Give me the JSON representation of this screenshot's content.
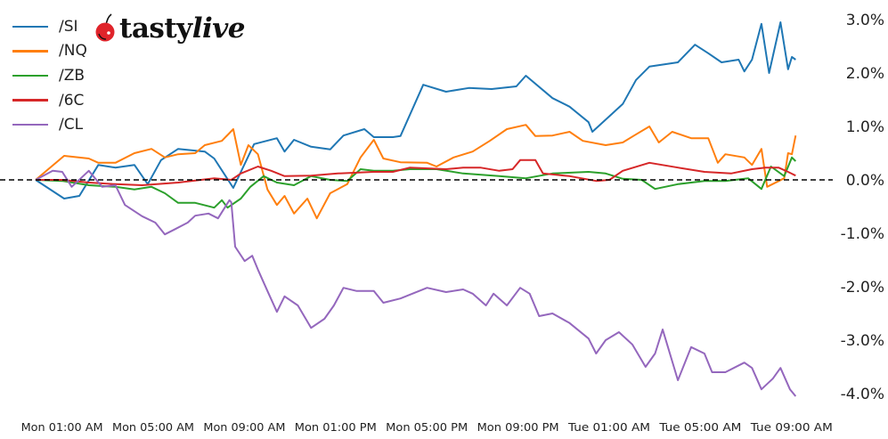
{
  "logo": {
    "brand": "tasty",
    "brand_italic": "live"
  },
  "chart_data": {
    "type": "line",
    "title": "",
    "xlabel": "",
    "ylabel": "",
    "y_format": "percent",
    "ylim": [
      -4.0,
      3.0
    ],
    "yticks": [
      3.0,
      2.0,
      1.0,
      0.0,
      -1.0,
      -2.0,
      -3.0,
      -4.0
    ],
    "ytick_labels": [
      "3.0%",
      "2.0%",
      "1.0%",
      "0.0%",
      "-1.0%",
      "-2.0%",
      "-3.0%",
      "-4.0%"
    ],
    "y_axis_side": "right",
    "xticks": [
      "Mon 01:00",
      "Mon 05:00",
      "Mon 09:00",
      "Mon 13:00",
      "Mon 17:00",
      "Mon 21:00",
      "Tue 01:00",
      "Tue 05:00",
      "Tue 09:00"
    ],
    "xtick_labels": [
      "Mon 01:00 AM",
      "Mon 05:00 AM",
      "Mon 09:00 AM",
      "Mon 01:00 PM",
      "Mon 05:00 PM",
      "Mon 09:00 PM",
      "Tue 01:00 AM",
      "Tue 05:00 AM",
      "Tue 09:00 AM"
    ],
    "reference_line": {
      "y": 0,
      "style": "dashed",
      "color": "#000000"
    },
    "grid": false,
    "legend_position": "top-left",
    "series": [
      {
        "name": "/SI",
        "color": "#1f77b4",
        "points": [
          [
            "Mon 00:00",
            0
          ],
          [
            "Mon 01:15",
            -0.35
          ],
          [
            "Mon 01:55",
            -0.3
          ],
          [
            "Mon 02:45",
            0.28
          ],
          [
            "Mon 03:30",
            0.23
          ],
          [
            "Mon 04:20",
            0.28
          ],
          [
            "Mon 04:55",
            -0.08
          ],
          [
            "Mon 05:30",
            0.37
          ],
          [
            "Mon 06:15",
            0.58
          ],
          [
            "Mon 07:25",
            0.53
          ],
          [
            "Mon 07:50",
            0.4
          ],
          [
            "Mon 08:40",
            -0.15
          ],
          [
            "Mon 09:35",
            0.67
          ],
          [
            "Mon 10:35",
            0.78
          ],
          [
            "Mon 10:55",
            0.53
          ],
          [
            "Mon 11:20",
            0.75
          ],
          [
            "Mon 12:05",
            0.62
          ],
          [
            "Mon 12:55",
            0.57
          ],
          [
            "Mon 13:30",
            0.83
          ],
          [
            "Mon 14:25",
            0.95
          ],
          [
            "Mon 14:50",
            0.8
          ],
          [
            "Mon 15:40",
            0.8
          ],
          [
            "Mon 16:00",
            0.82
          ],
          [
            "Mon 17:00",
            1.78
          ],
          [
            "Mon 18:00",
            1.65
          ],
          [
            "Mon 19:00",
            1.72
          ],
          [
            "Mon 20:00",
            1.7
          ],
          [
            "Mon 21:05",
            1.75
          ],
          [
            "Mon 21:30",
            1.95
          ],
          [
            "Mon 22:40",
            1.53
          ],
          [
            "Mon 23:25",
            1.37
          ],
          [
            "Tue 00:15",
            1.08
          ],
          [
            "Tue 00:25",
            0.9
          ],
          [
            "Tue 01:45",
            1.42
          ],
          [
            "Tue 02:20",
            1.87
          ],
          [
            "Tue 02:55",
            2.12
          ],
          [
            "Tue 04:10",
            2.2
          ],
          [
            "Tue 04:55",
            2.53
          ],
          [
            "Tue 05:30",
            2.37
          ],
          [
            "Tue 06:05",
            2.2
          ],
          [
            "Tue 06:50",
            2.25
          ],
          [
            "Tue 07:05",
            2.03
          ],
          [
            "Tue 07:25",
            2.25
          ],
          [
            "Tue 07:50",
            2.92
          ],
          [
            "Tue 08:10",
            2.0
          ],
          [
            "Tue 08:40",
            2.95
          ],
          [
            "Tue 09:00",
            2.07
          ],
          [
            "Tue 09:10",
            2.3
          ],
          [
            "Tue 09:20",
            2.25
          ]
        ]
      },
      {
        "name": "/NQ",
        "color": "#ff7f0e",
        "points": [
          [
            "Mon 00:00",
            0
          ],
          [
            "Mon 01:15",
            0.45
          ],
          [
            "Mon 02:20",
            0.4
          ],
          [
            "Mon 02:45",
            0.32
          ],
          [
            "Mon 03:30",
            0.32
          ],
          [
            "Mon 04:20",
            0.5
          ],
          [
            "Mon 05:05",
            0.58
          ],
          [
            "Mon 05:40",
            0.42
          ],
          [
            "Mon 06:15",
            0.48
          ],
          [
            "Mon 07:00",
            0.5
          ],
          [
            "Mon 07:25",
            0.65
          ],
          [
            "Mon 08:10",
            0.73
          ],
          [
            "Mon 08:40",
            0.95
          ],
          [
            "Mon 09:00",
            0.28
          ],
          [
            "Mon 09:20",
            0.65
          ],
          [
            "Mon 09:45",
            0.48
          ],
          [
            "Mon 10:10",
            -0.18
          ],
          [
            "Mon 10:35",
            -0.47
          ],
          [
            "Mon 10:55",
            -0.3
          ],
          [
            "Mon 11:20",
            -0.63
          ],
          [
            "Mon 11:55",
            -0.35
          ],
          [
            "Mon 12:20",
            -0.72
          ],
          [
            "Mon 12:55",
            -0.25
          ],
          [
            "Mon 13:40",
            -0.08
          ],
          [
            "Mon 14:15",
            0.42
          ],
          [
            "Mon 14:50",
            0.75
          ],
          [
            "Mon 15:15",
            0.4
          ],
          [
            "Mon 16:00",
            0.33
          ],
          [
            "Mon 17:10",
            0.32
          ],
          [
            "Mon 17:35",
            0.25
          ],
          [
            "Mon 18:20",
            0.42
          ],
          [
            "Mon 19:10",
            0.53
          ],
          [
            "Mon 19:55",
            0.73
          ],
          [
            "Mon 20:40",
            0.95
          ],
          [
            "Mon 21:30",
            1.03
          ],
          [
            "Mon 21:55",
            0.82
          ],
          [
            "Mon 22:40",
            0.83
          ],
          [
            "Mon 23:25",
            0.9
          ],
          [
            "Tue 00:00",
            0.73
          ],
          [
            "Tue 01:00",
            0.65
          ],
          [
            "Tue 01:45",
            0.7
          ],
          [
            "Tue 02:15",
            0.83
          ],
          [
            "Tue 02:55",
            1.0
          ],
          [
            "Tue 03:20",
            0.7
          ],
          [
            "Tue 03:55",
            0.9
          ],
          [
            "Tue 04:45",
            0.78
          ],
          [
            "Tue 05:30",
            0.78
          ],
          [
            "Tue 05:55",
            0.32
          ],
          [
            "Tue 06:15",
            0.48
          ],
          [
            "Tue 07:05",
            0.42
          ],
          [
            "Tue 07:25",
            0.28
          ],
          [
            "Tue 07:50",
            0.58
          ],
          [
            "Tue 08:05",
            -0.13
          ],
          [
            "Tue 08:50",
            0.03
          ],
          [
            "Tue 09:00",
            0.5
          ],
          [
            "Tue 09:10",
            0.48
          ],
          [
            "Tue 09:20",
            0.83
          ]
        ]
      },
      {
        "name": "/ZB",
        "color": "#2ca02c",
        "points": [
          [
            "Mon 00:00",
            0
          ],
          [
            "Mon 01:10",
            -0.02
          ],
          [
            "Mon 02:20",
            -0.1
          ],
          [
            "Mon 03:30",
            -0.13
          ],
          [
            "Mon 04:20",
            -0.18
          ],
          [
            "Mon 05:05",
            -0.13
          ],
          [
            "Mon 05:40",
            -0.25
          ],
          [
            "Mon 06:15",
            -0.43
          ],
          [
            "Mon 07:00",
            -0.43
          ],
          [
            "Mon 07:50",
            -0.52
          ],
          [
            "Mon 08:10",
            -0.38
          ],
          [
            "Mon 08:25",
            -0.52
          ],
          [
            "Mon 09:00",
            -0.35
          ],
          [
            "Mon 09:25",
            -0.13
          ],
          [
            "Mon 10:00",
            0.07
          ],
          [
            "Mon 10:35",
            -0.05
          ],
          [
            "Mon 11:20",
            -0.1
          ],
          [
            "Mon 12:05",
            0.07
          ],
          [
            "Mon 12:55",
            0
          ],
          [
            "Mon 13:40",
            -0.02
          ],
          [
            "Mon 14:15",
            0.2
          ],
          [
            "Mon 14:50",
            0.17
          ],
          [
            "Mon 15:40",
            0.17
          ],
          [
            "Mon 16:25",
            0.2
          ],
          [
            "Mon 17:35",
            0.2
          ],
          [
            "Mon 18:45",
            0.12
          ],
          [
            "Mon 20:20",
            0.07
          ],
          [
            "Mon 21:30",
            0.03
          ],
          [
            "Mon 22:40",
            0.12
          ],
          [
            "Tue 00:15",
            0.15
          ],
          [
            "Tue 01:00",
            0.12
          ],
          [
            "Tue 01:45",
            0.02
          ],
          [
            "Tue 02:35",
            0
          ],
          [
            "Tue 03:10",
            -0.17
          ],
          [
            "Tue 04:10",
            -0.08
          ],
          [
            "Tue 05:20",
            -0.02
          ],
          [
            "Tue 06:15",
            -0.02
          ],
          [
            "Tue 07:15",
            0.03
          ],
          [
            "Tue 07:50",
            -0.17
          ],
          [
            "Tue 08:15",
            0.25
          ],
          [
            "Tue 08:50",
            0.07
          ],
          [
            "Tue 09:10",
            0.42
          ],
          [
            "Tue 09:20",
            0.35
          ]
        ]
      },
      {
        "name": "/6C",
        "color": "#d62728",
        "points": [
          [
            "Mon 00:00",
            0
          ],
          [
            "Mon 01:10",
            0
          ],
          [
            "Mon 02:20",
            -0.05
          ],
          [
            "Mon 03:30",
            -0.08
          ],
          [
            "Mon 04:40",
            -0.1
          ],
          [
            "Mon 06:15",
            -0.05
          ],
          [
            "Mon 07:50",
            0.03
          ],
          [
            "Mon 08:35",
            0
          ],
          [
            "Mon 09:00",
            0.12
          ],
          [
            "Mon 09:45",
            0.25
          ],
          [
            "Mon 10:20",
            0.17
          ],
          [
            "Mon 10:55",
            0.07
          ],
          [
            "Mon 12:05",
            0.08
          ],
          [
            "Mon 13:15",
            0.12
          ],
          [
            "Mon 14:50",
            0.15
          ],
          [
            "Mon 15:40",
            0.15
          ],
          [
            "Mon 16:25",
            0.23
          ],
          [
            "Mon 18:00",
            0.2
          ],
          [
            "Mon 18:45",
            0.23
          ],
          [
            "Mon 19:30",
            0.23
          ],
          [
            "Mon 20:20",
            0.17
          ],
          [
            "Mon 20:55",
            0.2
          ],
          [
            "Mon 21:15",
            0.37
          ],
          [
            "Mon 21:55",
            0.37
          ],
          [
            "Mon 22:15",
            0.12
          ],
          [
            "Mon 23:25",
            0.07
          ],
          [
            "Tue 00:35",
            -0.02
          ],
          [
            "Tue 01:10",
            0
          ],
          [
            "Tue 01:45",
            0.17
          ],
          [
            "Tue 02:55",
            0.32
          ],
          [
            "Tue 04:10",
            0.23
          ],
          [
            "Tue 05:20",
            0.15
          ],
          [
            "Tue 06:30",
            0.12
          ],
          [
            "Tue 07:25",
            0.2
          ],
          [
            "Tue 08:00",
            0.23
          ],
          [
            "Tue 08:35",
            0.23
          ],
          [
            "Tue 09:00",
            0.15
          ],
          [
            "Tue 09:20",
            0.08
          ]
        ]
      },
      {
        "name": "/CL",
        "color": "#9467bd",
        "points": [
          [
            "Mon 00:00",
            0
          ],
          [
            "Mon 00:45",
            0.17
          ],
          [
            "Mon 01:10",
            0.15
          ],
          [
            "Mon 01:35",
            -0.13
          ],
          [
            "Mon 02:20",
            0.17
          ],
          [
            "Mon 02:55",
            -0.13
          ],
          [
            "Mon 03:30",
            -0.1
          ],
          [
            "Mon 03:55",
            -0.47
          ],
          [
            "Mon 04:40",
            -0.68
          ],
          [
            "Mon 05:15",
            -0.8
          ],
          [
            "Mon 05:40",
            -1.02
          ],
          [
            "Mon 06:05",
            -0.93
          ],
          [
            "Mon 06:40",
            -0.8
          ],
          [
            "Mon 07:00",
            -0.67
          ],
          [
            "Mon 07:35",
            -0.63
          ],
          [
            "Mon 08:00",
            -0.72
          ],
          [
            "Mon 08:30",
            -0.38
          ],
          [
            "Mon 08:35",
            -0.42
          ],
          [
            "Mon 08:45",
            -1.25
          ],
          [
            "Mon 09:10",
            -1.52
          ],
          [
            "Mon 09:30",
            -1.42
          ],
          [
            "Mon 09:45",
            -1.68
          ],
          [
            "Mon 10:10",
            -2.08
          ],
          [
            "Mon 10:35",
            -2.47
          ],
          [
            "Mon 10:55",
            -2.18
          ],
          [
            "Mon 11:30",
            -2.35
          ],
          [
            "Mon 12:05",
            -2.77
          ],
          [
            "Mon 12:40",
            -2.6
          ],
          [
            "Mon 13:05",
            -2.35
          ],
          [
            "Mon 13:30",
            -2.02
          ],
          [
            "Mon 14:05",
            -2.08
          ],
          [
            "Mon 14:50",
            -2.08
          ],
          [
            "Mon 15:15",
            -2.3
          ],
          [
            "Mon 16:00",
            -2.22
          ],
          [
            "Mon 17:10",
            -2.02
          ],
          [
            "Mon 18:00",
            -2.1
          ],
          [
            "Mon 18:45",
            -2.05
          ],
          [
            "Mon 19:10",
            -2.13
          ],
          [
            "Mon 19:45",
            -2.35
          ],
          [
            "Mon 20:05",
            -2.13
          ],
          [
            "Mon 20:40",
            -2.35
          ],
          [
            "Mon 21:15",
            -2.02
          ],
          [
            "Mon 21:40",
            -2.13
          ],
          [
            "Mon 22:05",
            -2.55
          ],
          [
            "Mon 22:40",
            -2.5
          ],
          [
            "Mon 23:25",
            -2.68
          ],
          [
            "Tue 00:15",
            -2.97
          ],
          [
            "Tue 00:35",
            -3.25
          ],
          [
            "Tue 01:00",
            -3.0
          ],
          [
            "Tue 01:35",
            -2.85
          ],
          [
            "Tue 02:10",
            -3.08
          ],
          [
            "Tue 02:45",
            -3.5
          ],
          [
            "Tue 03:10",
            -3.25
          ],
          [
            "Tue 03:30",
            -2.8
          ],
          [
            "Tue 04:10",
            -3.75
          ],
          [
            "Tue 04:45",
            -3.13
          ],
          [
            "Tue 05:20",
            -3.25
          ],
          [
            "Tue 05:40",
            -3.6
          ],
          [
            "Tue 06:15",
            -3.6
          ],
          [
            "Tue 07:05",
            -3.42
          ],
          [
            "Tue 07:25",
            -3.52
          ],
          [
            "Tue 07:50",
            -3.92
          ],
          [
            "Tue 08:20",
            -3.72
          ],
          [
            "Tue 08:40",
            -3.52
          ],
          [
            "Tue 09:05",
            -3.92
          ],
          [
            "Tue 09:20",
            -4.05
          ]
        ]
      }
    ]
  }
}
